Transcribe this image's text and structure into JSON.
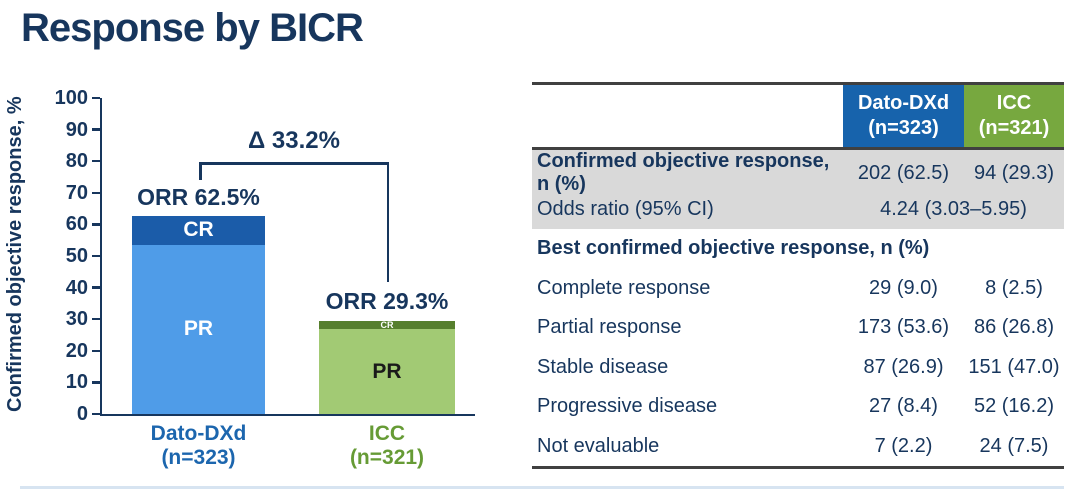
{
  "slide": {
    "title": "Response by BICR"
  },
  "colors": {
    "title_text": "#17365d",
    "axis": "#17365d",
    "dato_pr_fill": "#4f9ce8",
    "dato_cr_fill": "#1b5ca9",
    "icc_pr_fill": "#a2ca74",
    "icc_cr_fill": "#567f2d",
    "table_header_dato_bg": "#1763ac",
    "table_header_icc_bg": "#77a83f",
    "table_shaded_bg": "#d9d9d9",
    "table_border": "#404040",
    "bottom_accent": "#d7e4f1"
  },
  "chart_data": {
    "type": "bar",
    "stacked": true,
    "title": "",
    "xlabel": "",
    "ylabel": "Confirmed objective response, %",
    "ylim": [
      0,
      100
    ],
    "yticks": [
      0,
      10,
      20,
      30,
      40,
      50,
      60,
      70,
      80,
      90,
      100
    ],
    "grid": false,
    "legend_position": "none",
    "delta_annotation": "Δ 33.2%",
    "groups": [
      {
        "category": "Dato-DXd\n(n=323)",
        "orr_label": "ORR 62.5%",
        "orr_total": 62.5,
        "axis_label_color": "#1c66ae",
        "segments": [
          {
            "name": "PR",
            "value": 53.6,
            "color": "#4f9ce8",
            "text_color": "#ffffff"
          },
          {
            "name": "CR",
            "value": 9.0,
            "color": "#1b5ca9",
            "text_color": "#ffffff"
          }
        ]
      },
      {
        "category": "ICC\n(n=321)",
        "orr_label": "ORR 29.3%",
        "orr_total": 29.3,
        "axis_label_color": "#669b35",
        "segments": [
          {
            "name": "PR",
            "value": 26.8,
            "color": "#a2ca74",
            "text_color": "#1a1a1a"
          },
          {
            "name": "CR",
            "value": 2.5,
            "color": "#567f2d",
            "text_color": "#ffffff"
          }
        ]
      }
    ]
  },
  "table": {
    "columns": [
      "",
      "Dato-DXd\n(n=323)",
      "ICC\n(n=321)"
    ],
    "rows": [
      {
        "label": "Confirmed objective response, n (%)",
        "bold": true,
        "shaded": true,
        "values": [
          "202 (62.5)",
          "94 (29.3)"
        ]
      },
      {
        "label": "Odds ratio (95% CI)",
        "bold": false,
        "shaded": true,
        "span_value": "4.24 (3.03–5.95)"
      },
      {
        "label": "Best confirmed objective response, n (%)",
        "bold": true,
        "shaded": false,
        "section_header": true
      },
      {
        "label": "Complete response",
        "bold": false,
        "shaded": false,
        "values": [
          "29 (9.0)",
          "8 (2.5)"
        ]
      },
      {
        "label": "Partial response",
        "bold": false,
        "shaded": false,
        "values": [
          "173 (53.6)",
          "86 (26.8)"
        ]
      },
      {
        "label": "Stable disease",
        "bold": false,
        "shaded": false,
        "values": [
          "87 (26.9)",
          "151 (47.0)"
        ]
      },
      {
        "label": "Progressive disease",
        "bold": false,
        "shaded": false,
        "values": [
          "27 (8.4)",
          "52 (16.2)"
        ]
      },
      {
        "label": "Not evaluable",
        "bold": false,
        "shaded": false,
        "values": [
          "7 (2.2)",
          "24 (7.5)"
        ]
      }
    ]
  }
}
